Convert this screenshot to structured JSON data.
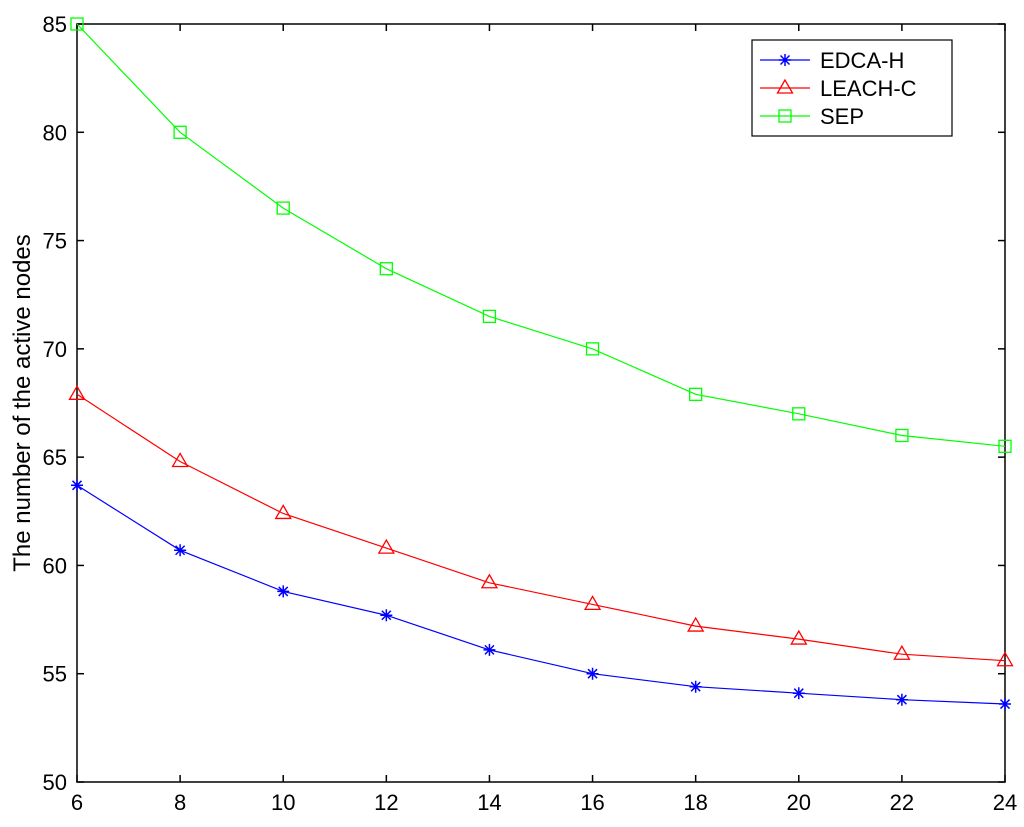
{
  "chart_data": {
    "type": "line",
    "title": "",
    "xlabel": "",
    "ylabel": "The number of the active nodes",
    "x": [
      6,
      8,
      10,
      12,
      14,
      16,
      18,
      20,
      22,
      24
    ],
    "xlim": [
      6,
      24
    ],
    "ylim": [
      50,
      85
    ],
    "xticks": [
      "6",
      "8",
      "10",
      "12",
      "14",
      "16",
      "18",
      "20",
      "22",
      "24"
    ],
    "yticks": [
      "50",
      "55",
      "60",
      "65",
      "70",
      "75",
      "80",
      "85"
    ],
    "grid": false,
    "legend_position": "top-right",
    "series": [
      {
        "name": "EDCA-H",
        "color": "#0000ff",
        "marker": "asterisk",
        "values": [
          63.7,
          60.7,
          58.8,
          57.7,
          56.1,
          55.0,
          54.4,
          54.1,
          53.8,
          53.6
        ]
      },
      {
        "name": "LEACH-C",
        "color": "#ff0000",
        "marker": "triangle",
        "values": [
          67.9,
          64.8,
          62.4,
          60.8,
          59.2,
          58.2,
          57.2,
          56.6,
          55.9,
          55.6
        ]
      },
      {
        "name": "SEP",
        "color": "#00ff00",
        "marker": "square",
        "values": [
          85.0,
          80.0,
          76.5,
          73.7,
          71.5,
          70.0,
          67.9,
          67.0,
          66.0,
          65.5
        ]
      }
    ]
  }
}
